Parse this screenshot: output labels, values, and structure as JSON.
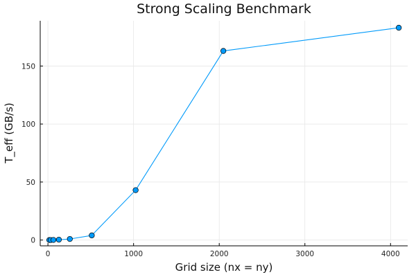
{
  "chart_data": {
    "type": "line",
    "title": "Strong Scaling Benchmark",
    "xlabel": "Grid size (nx = ny)",
    "ylabel": "T_eff (GB/s)",
    "xlim": [
      -90,
      4200
    ],
    "ylim": [
      -5,
      189
    ],
    "xticks": [
      0,
      1000,
      2000,
      3000,
      4000
    ],
    "yticks": [
      0,
      50,
      100,
      150
    ],
    "grid": true,
    "legend": "none",
    "series": [
      {
        "color": "#009AFA",
        "x": [
          16,
          32,
          64,
          128,
          256,
          512,
          1024,
          2048,
          4096
        ],
        "y": [
          0.0,
          0.02,
          0.08,
          0.3,
          0.9,
          4.0,
          43.0,
          163.0,
          183.0
        ]
      }
    ]
  }
}
